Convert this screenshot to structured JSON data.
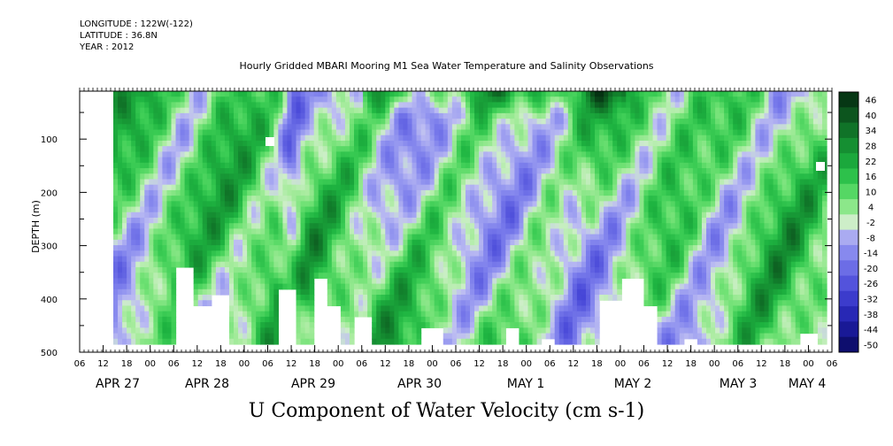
{
  "header": {
    "longitude": "LONGITUDE : 122W(-122)",
    "latitude": "LATITUDE : 36.8N",
    "year": "YEAR : 2012",
    "title": "Hourly Gridded MBARI Mooring M1 Sea Water Temperature and Salinity Observations",
    "subtitle": "U Component of Water Velocity (cm s-1)"
  },
  "chart_data": {
    "type": "heatmap",
    "title": "Hourly Gridded MBARI Mooring M1 Sea Water Temperature and Salinity Observations",
    "ylabel": "DEPTH (m)",
    "xlabel": "",
    "y_range": [
      500,
      0
    ],
    "y_ticks": [
      100,
      200,
      300,
      400,
      500
    ],
    "x_hour_ticks": [
      "06",
      "12",
      "18",
      "00",
      "06",
      "12",
      "18",
      "00",
      "06",
      "12",
      "18",
      "00",
      "06",
      "12",
      "18",
      "00",
      "06",
      "12",
      "18",
      "00",
      "06",
      "12",
      "18",
      "00",
      "06",
      "12",
      "18",
      "00",
      "06",
      "12",
      "18",
      "00",
      "06"
    ],
    "x_date_labels": [
      "APR 27",
      "APR 28",
      "APR 29",
      "APR 30",
      "MAY 1",
      "MAY 2",
      "MAY 3",
      "MAY 4"
    ],
    "colorbar_values": [
      46,
      40,
      34,
      28,
      22,
      16,
      10,
      4,
      -2,
      -8,
      -14,
      -20,
      -26,
      -32,
      -38,
      -44,
      -50
    ],
    "colorbar_range": [
      -50,
      50
    ],
    "colors": {
      "strong_positive": "#0b3d14",
      "positive": "#1db84a",
      "weak_positive": "#8ee58a",
      "near_zero": "#c8ecc2",
      "weak_negative": "#b9b8ef",
      "negative": "#8c8ef0",
      "strong_negative": "#1a1a8c"
    },
    "value_range_observed": [
      -30,
      46
    ]
  }
}
